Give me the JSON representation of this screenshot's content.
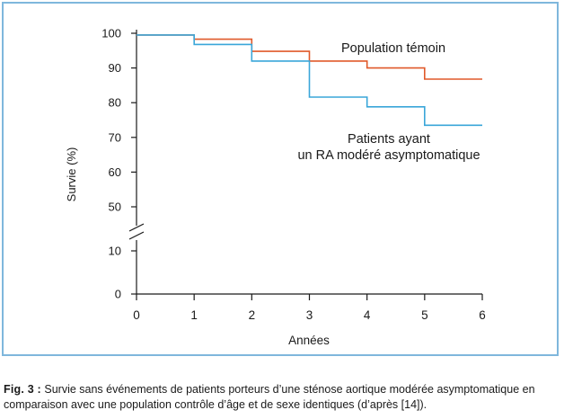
{
  "chart_data": {
    "type": "line",
    "step": true,
    "xlabel": "Années",
    "ylabel": "Survie (%)",
    "x_ticks": [
      0,
      1,
      2,
      3,
      4,
      5,
      6
    ],
    "y_ticks_upper": [
      100,
      90,
      80,
      70,
      60,
      50
    ],
    "y_ticks_lower": [
      10,
      0
    ],
    "xlim": [
      0,
      6
    ],
    "ylim_upper": [
      50,
      100
    ],
    "ylim_lower": [
      0,
      10
    ],
    "axis_break": true,
    "grid": false,
    "series": [
      {
        "name": "Population témoin",
        "color": "#e0592a",
        "points": [
          [
            0,
            99.5
          ],
          [
            1,
            99.5
          ],
          [
            1,
            98.3
          ],
          [
            2,
            98.3
          ],
          [
            2,
            94.8
          ],
          [
            3,
            94.8
          ],
          [
            3,
            92.0
          ],
          [
            4,
            92.0
          ],
          [
            4,
            90.0
          ],
          [
            5,
            90.0
          ],
          [
            5,
            86.8
          ],
          [
            6,
            86.8
          ]
        ]
      },
      {
        "name": "Patients ayant\nun RA modéré asymptomatique",
        "color": "#3aa6d9",
        "points": [
          [
            0,
            99.5
          ],
          [
            1,
            99.5
          ],
          [
            1,
            96.8
          ],
          [
            2,
            96.8
          ],
          [
            2,
            92.0
          ],
          [
            3,
            92.0
          ],
          [
            3,
            81.6
          ],
          [
            4,
            81.6
          ],
          [
            4,
            78.8
          ],
          [
            5,
            78.8
          ],
          [
            5,
            73.5
          ],
          [
            6,
            73.5
          ]
        ]
      }
    ],
    "annotations": [
      {
        "lines": [
          "Population témoin"
        ]
      },
      {
        "lines": [
          "Patients ayant",
          "un RA modéré asymptomatique"
        ]
      }
    ]
  },
  "caption": {
    "label": "Fig. 3 :",
    "line1": "Survie sans événements de patients porteurs d’une sténose aortique modérée asymptomatique en",
    "line2": "comparaison avec une population contrôle d’âge et de sexe identiques (d’après [14])."
  }
}
